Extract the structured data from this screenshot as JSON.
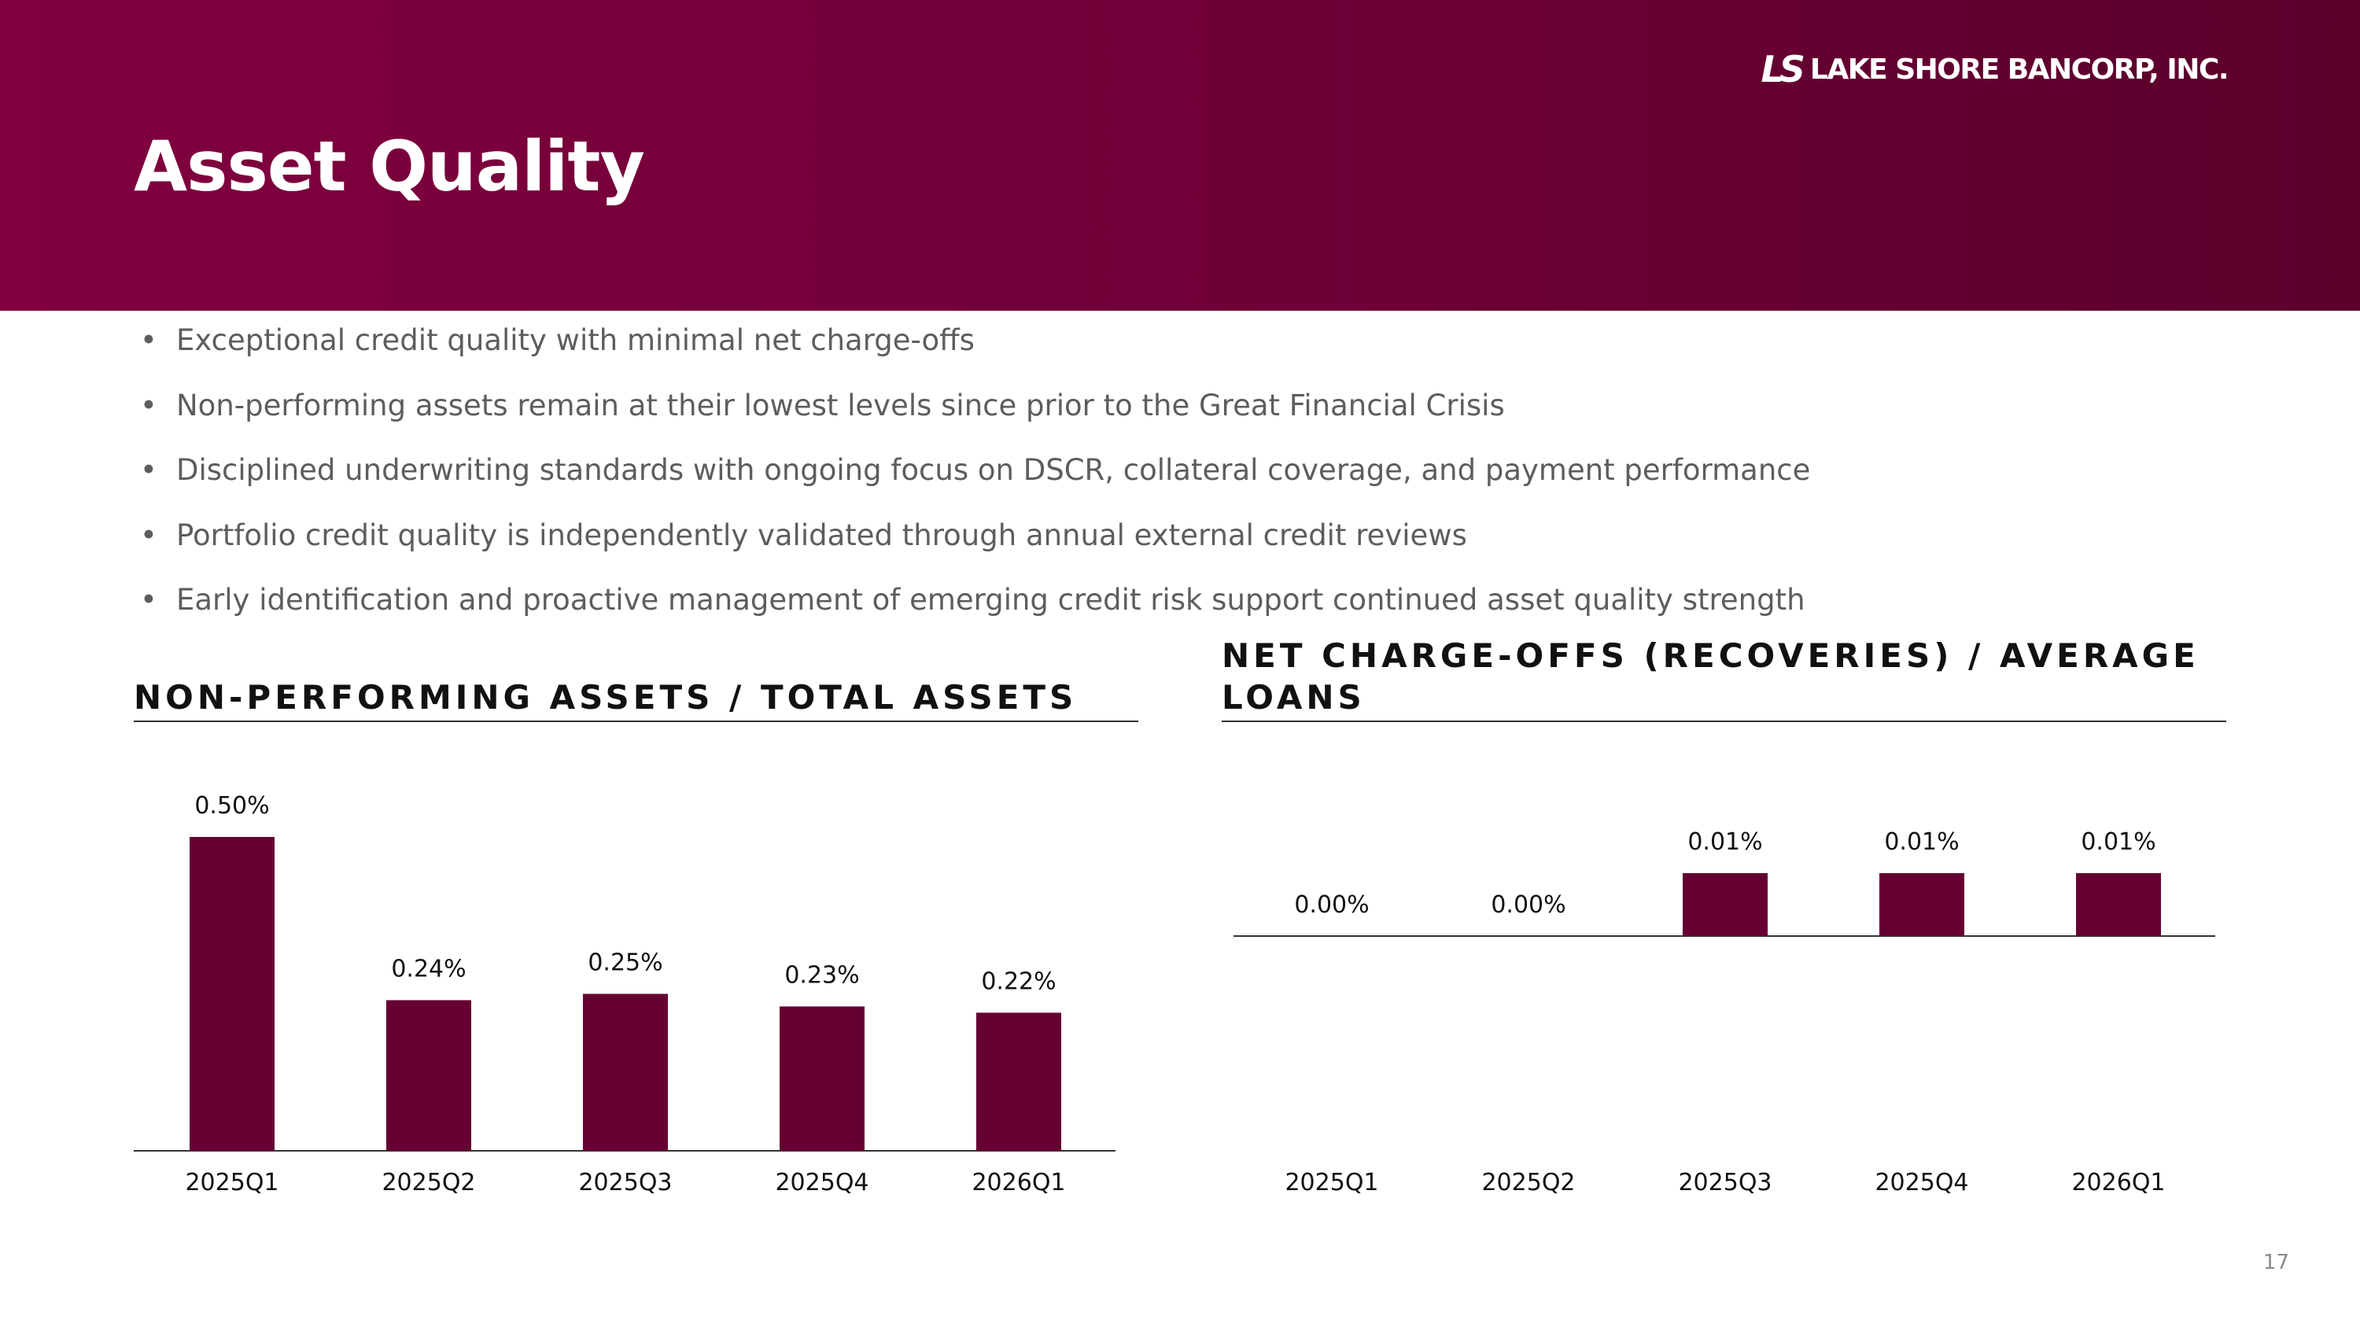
{
  "header": {
    "title": "Asset Quality",
    "logo_mark": "LS",
    "logo_text": "LAKE SHORE BANCORP, INC."
  },
  "bullets": [
    "Exceptional credit quality with minimal net charge-offs",
    "Non-performing assets remain at their lowest levels since prior to the Great Financial Crisis",
    "Disciplined underwriting standards with ongoing focus on DSCR, collateral coverage, and payment performance",
    "Portfolio credit quality is independently validated through annual external credit reviews",
    "Early identification and proactive management of emerging credit risk support continued asset quality strength"
  ],
  "colors": {
    "bar": "#660033",
    "header": "#760039"
  },
  "chart_data": [
    {
      "type": "bar",
      "title": "NON-PERFORMING ASSETS / TOTAL ASSETS",
      "categories": [
        "2025Q1",
        "2025Q2",
        "2025Q3",
        "2025Q4",
        "2026Q1"
      ],
      "values": [
        0.5,
        0.24,
        0.25,
        0.23,
        0.22
      ],
      "data_labels": [
        "0.50%",
        "0.24%",
        "0.25%",
        "0.23%",
        "0.22%"
      ],
      "ylim": [
        0,
        0.5
      ],
      "grid": false,
      "legend": "none"
    },
    {
      "type": "bar",
      "title": "NET CHARGE-OFFS (RECOVERIES) / AVERAGE LOANS",
      "categories": [
        "2025Q1",
        "2025Q2",
        "2025Q3",
        "2025Q4",
        "2026Q1"
      ],
      "values": [
        0.0,
        0.0,
        0.01,
        0.01,
        0.01
      ],
      "data_labels": [
        "0.00%",
        "0.00%",
        "0.01%",
        "0.01%",
        "0.01%"
      ],
      "ylim": [
        -0.03,
        0.025
      ],
      "grid": false,
      "legend": "none"
    }
  ],
  "page_number": "17"
}
